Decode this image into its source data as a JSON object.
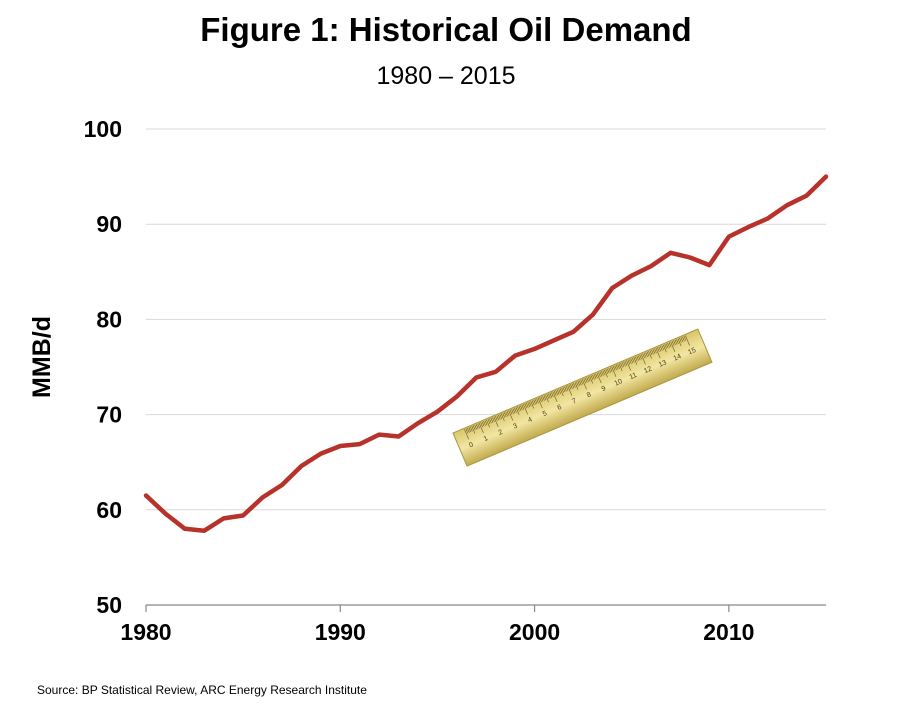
{
  "chart_data": {
    "type": "line",
    "title": "Figure 1: Historical Oil Demand",
    "subtitle": "1980 – 2015",
    "ylabel": "MMB/d",
    "xlim": [
      1980,
      2015
    ],
    "ylim": [
      50,
      100
    ],
    "yticks": [
      50,
      60,
      70,
      80,
      90,
      100
    ],
    "xticks": [
      1980,
      1990,
      2000,
      2010
    ],
    "grid": true,
    "line_color": "#b7322a",
    "series": [
      {
        "x": [
          1980,
          1981,
          1982,
          1983,
          1984,
          1985,
          1986,
          1987,
          1988,
          1989,
          1990,
          1991,
          1992,
          1993,
          1994,
          1995,
          1996,
          1997,
          1998,
          1999,
          2000,
          2001,
          2002,
          2003,
          2004,
          2005,
          2006,
          2007,
          2008,
          2009,
          2010,
          2011,
          2012,
          2013,
          2014,
          2015
        ],
        "values": [
          61.5,
          59.6,
          58.0,
          57.8,
          59.1,
          59.4,
          61.3,
          62.6,
          64.6,
          65.9,
          66.7,
          66.9,
          67.9,
          67.7,
          69.1,
          70.3,
          71.9,
          73.9,
          74.5,
          76.2,
          76.9,
          77.8,
          78.7,
          80.5,
          83.3,
          84.6,
          85.6,
          87.0,
          86.5,
          85.7,
          88.7,
          89.7,
          90.6,
          92.0,
          93.0,
          95.0
        ]
      }
    ],
    "source": "Source:  BP Statistical Review,  ARC Energy Research Institute"
  },
  "ruler": {
    "numbers": [
      "0",
      "1",
      "2",
      "3",
      "4",
      "5",
      "6",
      "7",
      "8",
      "9",
      "10",
      "11",
      "12",
      "13",
      "14",
      "15"
    ]
  }
}
